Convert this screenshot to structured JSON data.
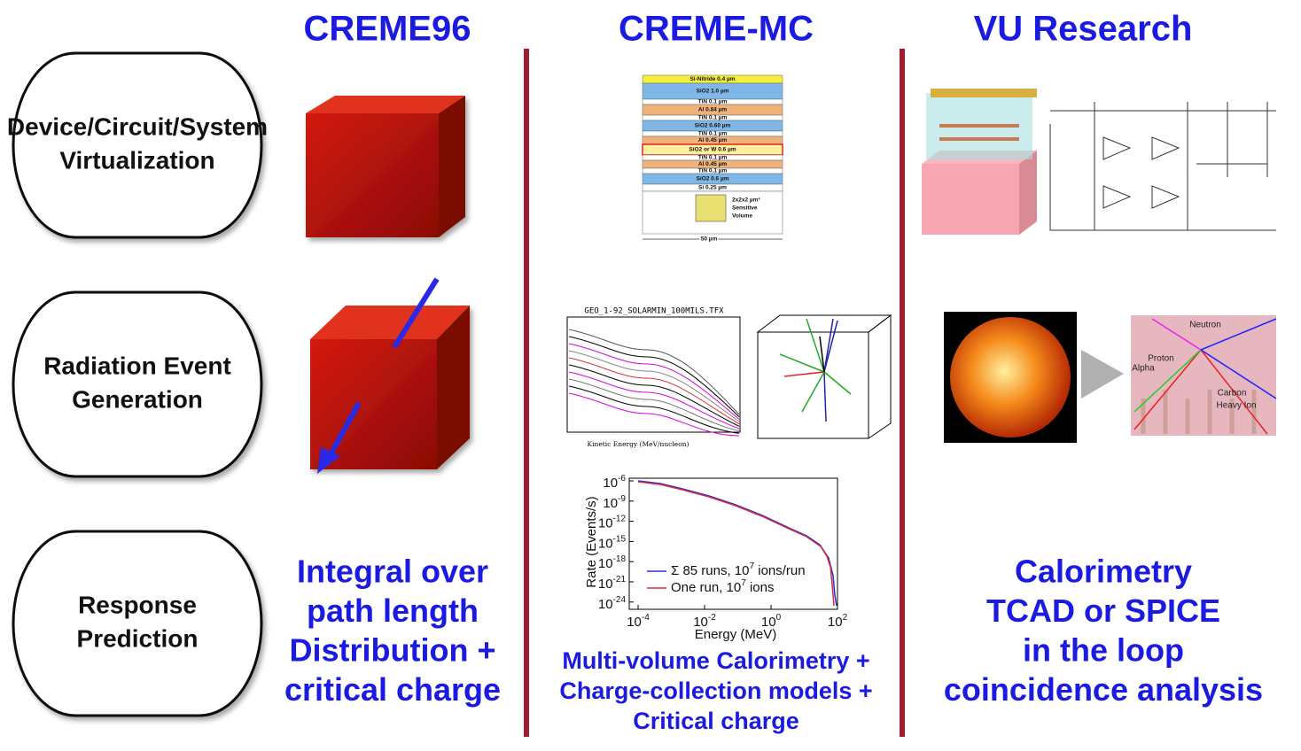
{
  "columns": [
    {
      "title": "CREME96",
      "summary": [
        "Integral over",
        "path length",
        "Distribution +",
        "critical charge"
      ]
    },
    {
      "title": "CREME-MC",
      "summary": [
        "Multi-volume Calorimetry +",
        "Charge-collection models +",
        "Critical charge"
      ]
    },
    {
      "title": "VU Research",
      "summary": [
        "Calorimetry",
        "TCAD or SPICE",
        "in the loop",
        "coincidence analysis"
      ]
    }
  ],
  "rows": [
    {
      "label": [
        "Device/Circuit/System",
        "Virtualization"
      ]
    },
    {
      "label": [
        "Radiation Event",
        "Generation"
      ]
    },
    {
      "label": [
        "Response",
        "Prediction"
      ]
    }
  ],
  "layer_stack": {
    "layers": [
      "Si-Nitride 0.4 µm",
      "SiO2 1.0 µm",
      "TiN 0.1 µm",
      "Al 0.84 µm",
      "TiN 0.1 µm",
      "SiO2 0.60 µm",
      "TiN 0.1 µm",
      "Al 0.45 µm",
      "SiO2 or W 0.6 µm",
      "TiN 0.1 µm",
      "Al 0.45 µm",
      "TiN 0.1 µm",
      "SiO2 0.6 µm",
      "Si 0.25 µm"
    ],
    "sensitive_volume": [
      "2x2x2 µm³",
      "Sensitive",
      "Volume"
    ],
    "width": "50 µm"
  },
  "flux_plot": {
    "title": "GEO_1-92_SOLARMIN_100MILS.TFX",
    "x_label": "Kinetic Energy (MeV/nucleon)"
  },
  "rate_plot": {
    "y_label": "Rate (Events/s)",
    "x_label": "Energy (MeV)",
    "yticks": [
      {
        "base": "10",
        "exp": "-6"
      },
      {
        "base": "10",
        "exp": "-9"
      },
      {
        "base": "10",
        "exp": "-12"
      },
      {
        "base": "10",
        "exp": "-15"
      },
      {
        "base": "10",
        "exp": "-18"
      },
      {
        "base": "10",
        "exp": "-21"
      },
      {
        "base": "10",
        "exp": "-24"
      }
    ],
    "xticks": [
      {
        "base": "10",
        "exp": "-4"
      },
      {
        "base": "10",
        "exp": "-2"
      },
      {
        "base": "10",
        "exp": "0"
      },
      {
        "base": "10",
        "exp": "2"
      }
    ],
    "legend": [
      {
        "parts": [
          "Σ 85 runs, 10",
          "7",
          " ions/run"
        ],
        "color": "#2b2bd6"
      },
      {
        "parts": [
          "One run, 10",
          "7",
          " ions"
        ],
        "color": "#d62b3a"
      }
    ]
  },
  "tcad_labels": [
    "Neutron",
    "Proton",
    "Alpha",
    "Carbon",
    "Heavy Ion"
  ]
}
